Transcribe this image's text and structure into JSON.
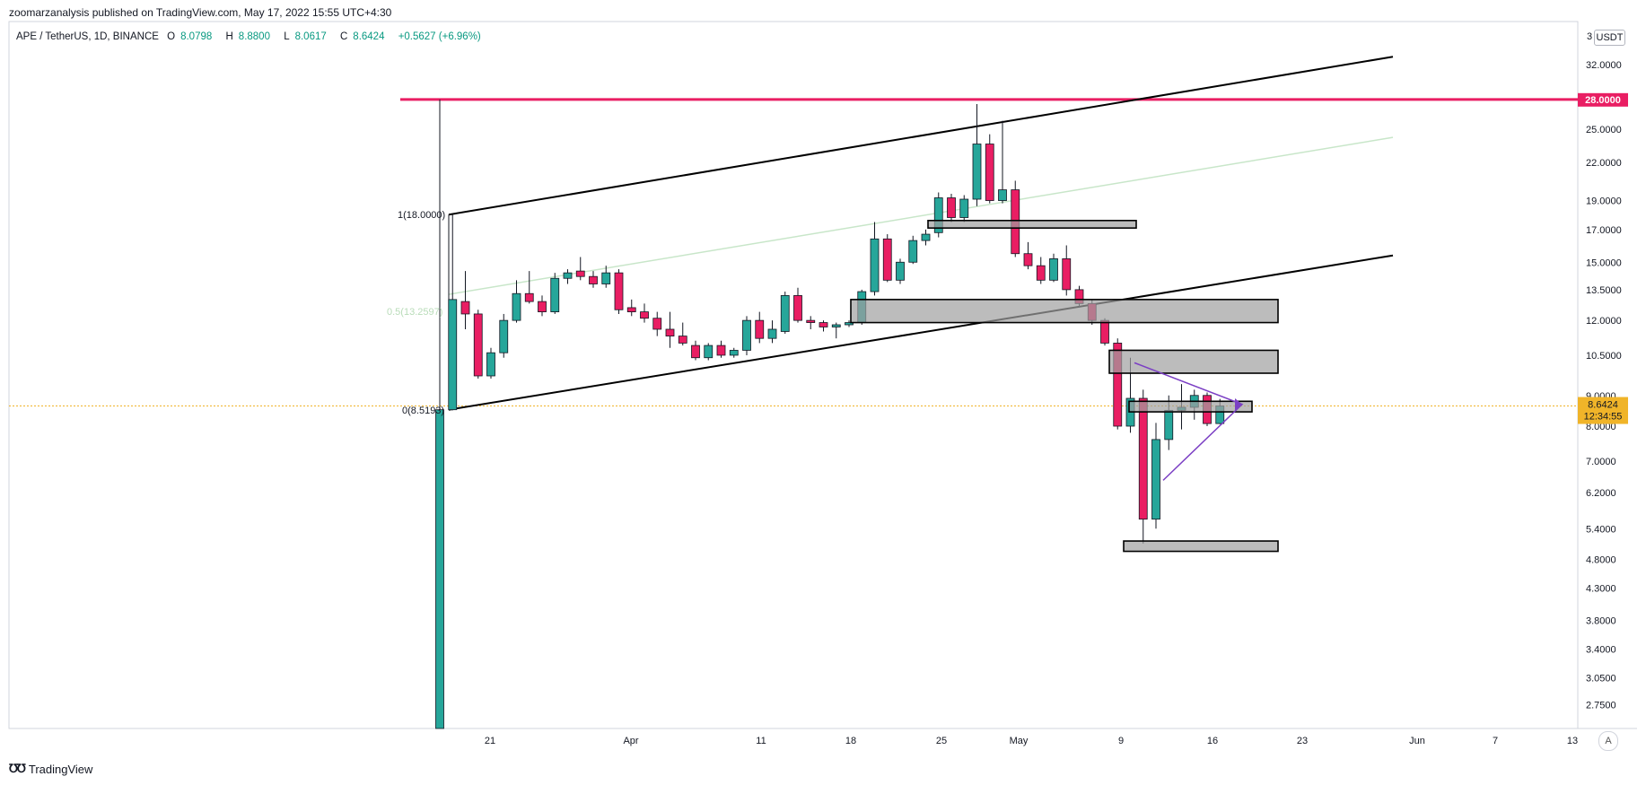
{
  "header": {
    "author": "zoomarzanalysis",
    "published_text": "zoomarzanalysis published on TradingView.com, May 17, 2022 15:55 UTC+4:30"
  },
  "legend": {
    "symbol": "APE / TetherUS, 1D, BINANCE",
    "open_label": "O",
    "open": "8.0798",
    "high_label": "H",
    "high": "8.8800",
    "low_label": "L",
    "low": "8.0617",
    "close_label": "C",
    "close": "8.6424",
    "change": "+0.5627 (+6.96%)"
  },
  "price_axis": {
    "unit": "USDT",
    "ticks": [
      "32.0000",
      "25.0000",
      "22.0000",
      "19.0000",
      "17.0000",
      "15.0000",
      "13.5000",
      "12.0000",
      "10.5000",
      "9.0000",
      "8.0000",
      "7.0000",
      "6.2000",
      "5.4000",
      "4.8000",
      "4.3000",
      "3.8000",
      "3.4000",
      "3.0500",
      "2.7500"
    ],
    "top_partial": "3",
    "highlight_level": "28.0000",
    "last_price": "8.6424",
    "countdown": "12:34:55"
  },
  "time_axis": {
    "labels": [
      "21",
      "Apr",
      "11",
      "18",
      "25",
      "May",
      "9",
      "16",
      "23",
      "Jun",
      "7",
      "13"
    ],
    "auto_button": "A"
  },
  "fib": {
    "level_1": "1(18.0000)",
    "level_05": "0.5(13.2597)",
    "level_0": "0(8.5193)"
  },
  "footer": {
    "brand": "TradingView"
  },
  "colors": {
    "up": "#26a69a",
    "down": "#e91e63",
    "resistance": "#e91e63",
    "current_price": "#f0b429",
    "triangle": "#7b3fc4",
    "midline": "#c8e6c9"
  },
  "chart_data": {
    "type": "candlestick",
    "title": "APE / TetherUS, 1D, BINANCE",
    "xlabel": "",
    "ylabel": "USDT",
    "scale": "log",
    "ylim": [
      2.5,
      35
    ],
    "x_ticks": [
      "21",
      "Apr",
      "11",
      "18",
      "25",
      "May",
      "9",
      "16",
      "23",
      "Jun",
      "7",
      "13"
    ],
    "candles": [
      {
        "o": 1.0,
        "h": 28.0,
        "l": 1.0,
        "c": 8.52
      },
      {
        "o": 8.52,
        "h": 18.0,
        "l": 8.5,
        "c": 13.0
      },
      {
        "o": 12.9,
        "h": 14.5,
        "l": 11.6,
        "c": 12.3
      },
      {
        "o": 12.3,
        "h": 12.5,
        "l": 9.6,
        "c": 9.7
      },
      {
        "o": 9.7,
        "h": 10.8,
        "l": 9.6,
        "c": 10.6
      },
      {
        "o": 10.6,
        "h": 12.3,
        "l": 10.4,
        "c": 12.0
      },
      {
        "o": 12.0,
        "h": 14.0,
        "l": 11.9,
        "c": 13.3
      },
      {
        "o": 13.3,
        "h": 14.5,
        "l": 12.8,
        "c": 12.9
      },
      {
        "o": 12.9,
        "h": 13.2,
        "l": 12.2,
        "c": 12.4
      },
      {
        "o": 12.4,
        "h": 14.4,
        "l": 12.3,
        "c": 14.1
      },
      {
        "o": 14.1,
        "h": 14.6,
        "l": 13.8,
        "c": 14.4
      },
      {
        "o": 14.5,
        "h": 15.3,
        "l": 14.0,
        "c": 14.2
      },
      {
        "o": 14.2,
        "h": 14.5,
        "l": 13.6,
        "c": 13.8
      },
      {
        "o": 13.8,
        "h": 14.8,
        "l": 13.6,
        "c": 14.4
      },
      {
        "o": 14.4,
        "h": 14.6,
        "l": 12.3,
        "c": 12.5
      },
      {
        "o": 12.6,
        "h": 13.0,
        "l": 12.2,
        "c": 12.4
      },
      {
        "o": 12.4,
        "h": 12.8,
        "l": 11.9,
        "c": 12.1
      },
      {
        "o": 12.1,
        "h": 12.4,
        "l": 11.3,
        "c": 11.6
      },
      {
        "o": 11.6,
        "h": 12.4,
        "l": 10.8,
        "c": 11.3
      },
      {
        "o": 11.3,
        "h": 11.9,
        "l": 10.9,
        "c": 11.0
      },
      {
        "o": 10.9,
        "h": 11.1,
        "l": 10.3,
        "c": 10.4
      },
      {
        "o": 10.4,
        "h": 11.0,
        "l": 10.3,
        "c": 10.9
      },
      {
        "o": 10.9,
        "h": 11.1,
        "l": 10.4,
        "c": 10.5
      },
      {
        "o": 10.5,
        "h": 10.8,
        "l": 10.4,
        "c": 10.7
      },
      {
        "o": 10.7,
        "h": 12.2,
        "l": 10.5,
        "c": 12.0
      },
      {
        "o": 12.0,
        "h": 12.4,
        "l": 11.0,
        "c": 11.2
      },
      {
        "o": 11.2,
        "h": 12.0,
        "l": 11.0,
        "c": 11.6
      },
      {
        "o": 11.5,
        "h": 13.4,
        "l": 11.4,
        "c": 13.2
      },
      {
        "o": 13.2,
        "h": 13.6,
        "l": 11.9,
        "c": 12.0
      },
      {
        "o": 12.0,
        "h": 12.2,
        "l": 11.6,
        "c": 11.9
      },
      {
        "o": 11.9,
        "h": 12.0,
        "l": 11.5,
        "c": 11.7
      },
      {
        "o": 11.7,
        "h": 11.9,
        "l": 11.2,
        "c": 11.8
      },
      {
        "o": 11.8,
        "h": 12.0,
        "l": 11.7,
        "c": 11.9
      },
      {
        "o": 11.9,
        "h": 13.5,
        "l": 11.8,
        "c": 13.4
      },
      {
        "o": 13.4,
        "h": 17.5,
        "l": 13.2,
        "c": 16.4
      },
      {
        "o": 16.4,
        "h": 16.7,
        "l": 13.9,
        "c": 14.0
      },
      {
        "o": 14.0,
        "h": 15.2,
        "l": 13.8,
        "c": 15.0
      },
      {
        "o": 15.0,
        "h": 16.6,
        "l": 14.9,
        "c": 16.3
      },
      {
        "o": 16.3,
        "h": 17.0,
        "l": 16.0,
        "c": 16.7
      },
      {
        "o": 16.8,
        "h": 19.6,
        "l": 16.5,
        "c": 19.2
      },
      {
        "o": 19.2,
        "h": 19.5,
        "l": 17.5,
        "c": 17.8
      },
      {
        "o": 17.8,
        "h": 19.4,
        "l": 17.5,
        "c": 19.1
      },
      {
        "o": 19.1,
        "h": 27.5,
        "l": 18.6,
        "c": 23.6
      },
      {
        "o": 23.6,
        "h": 24.5,
        "l": 18.8,
        "c": 19.0
      },
      {
        "o": 19.0,
        "h": 25.8,
        "l": 18.8,
        "c": 19.8
      },
      {
        "o": 19.8,
        "h": 20.5,
        "l": 15.3,
        "c": 15.5
      },
      {
        "o": 15.5,
        "h": 16.2,
        "l": 14.6,
        "c": 14.8
      },
      {
        "o": 14.8,
        "h": 15.3,
        "l": 13.8,
        "c": 14.0
      },
      {
        "o": 14.0,
        "h": 15.5,
        "l": 13.9,
        "c": 15.2
      },
      {
        "o": 15.2,
        "h": 16.0,
        "l": 13.2,
        "c": 13.5
      },
      {
        "o": 13.5,
        "h": 13.7,
        "l": 12.6,
        "c": 12.8
      },
      {
        "o": 12.8,
        "h": 13.0,
        "l": 11.8,
        "c": 12.0
      },
      {
        "o": 12.0,
        "h": 12.1,
        "l": 10.9,
        "c": 11.0
      },
      {
        "o": 11.0,
        "h": 11.2,
        "l": 7.9,
        "c": 8.0
      },
      {
        "o": 8.0,
        "h": 10.4,
        "l": 7.8,
        "c": 8.9
      },
      {
        "o": 8.9,
        "h": 9.2,
        "l": 5.1,
        "c": 5.6
      },
      {
        "o": 5.6,
        "h": 8.1,
        "l": 5.4,
        "c": 7.6
      },
      {
        "o": 7.6,
        "h": 9.0,
        "l": 7.3,
        "c": 8.5
      },
      {
        "o": 8.5,
        "h": 9.4,
        "l": 7.9,
        "c": 8.6
      },
      {
        "o": 8.6,
        "h": 9.2,
        "l": 8.2,
        "c": 9.0
      },
      {
        "o": 9.0,
        "h": 9.1,
        "l": 8.0,
        "c": 8.08
      },
      {
        "o": 8.0798,
        "h": 8.88,
        "l": 8.0617,
        "c": 8.6424
      }
    ],
    "horizontal_levels": [
      {
        "value": 28.0,
        "color": "#e91e63"
      }
    ],
    "zones": [
      {
        "low": 17.1,
        "high": 17.6
      },
      {
        "low": 11.9,
        "high": 13.0
      },
      {
        "low": 9.8,
        "high": 10.7
      },
      {
        "low": 8.45,
        "high": 8.8
      },
      {
        "low": 4.95,
        "high": 5.15
      }
    ],
    "fib_levels": [
      18.0,
      13.2597,
      8.5193
    ],
    "last_price": 8.6424
  }
}
